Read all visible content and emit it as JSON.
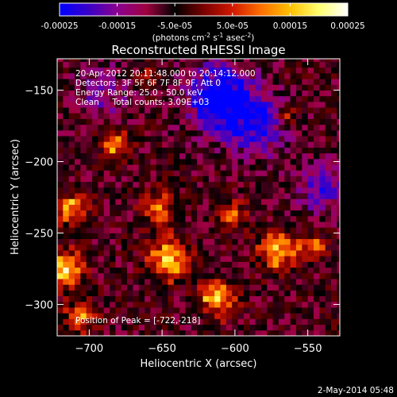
{
  "chart_data": {
    "type": "heatmap",
    "title": "Reconstructed RHESSI Image",
    "xlabel": "Heliocentric X (arcsec)",
    "ylabel": "Heliocentric Y (arcsec)",
    "xlim": [
      -722,
      -528
    ],
    "ylim": [
      -322,
      -128
    ],
    "xticks": [
      -700,
      -650,
      -600,
      -550
    ],
    "yticks": [
      -150,
      -200,
      -250,
      -300
    ],
    "colorbar": {
      "range": [
        -0.00025,
        0.00025
      ],
      "ticks": [
        "-0.00025",
        "-0.00015",
        "-5.0e-05",
        "5.0e-05",
        "0.00015",
        "0.00025"
      ],
      "tick_values": [
        -0.00025,
        -0.00015,
        -5e-05,
        5e-05,
        0.00015,
        0.00025
      ],
      "label_parts": [
        "(photons cm",
        "-2",
        " s",
        "-1",
        " asec",
        "-2",
        ")"
      ],
      "colors": [
        "#0000ff",
        "#3a00c8",
        "#8a0090",
        "#a00040",
        "#000000",
        "#7a0000",
        "#d21800",
        "#ff7000",
        "#ffc000",
        "#ffff70",
        "#ffffff"
      ]
    },
    "annotations": [
      "20-Apr-2012 20:11:48.000 to 20:14:12.000",
      "Detectors: 3F 5F 6F 7F 8F 9F, Att 0",
      "Energy Range: 25.0 - 50.0 keV",
      "Clean     Total counts: 3.09E+03"
    ],
    "peak_label": "Position of Peak = ",
    "peak_value": "[-722,-218]",
    "peak_position": [
      -722,
      -218
    ],
    "grid": false,
    "sources": [
      {
        "x": -682,
        "y": -188,
        "amp": 0.00017,
        "sigma": 7
      },
      {
        "x": -713,
        "y": -233,
        "amp": 0.00019,
        "sigma": 8
      },
      {
        "x": -716,
        "y": -275,
        "amp": 0.00021,
        "sigma": 9
      },
      {
        "x": -705,
        "y": -308,
        "amp": 0.00016,
        "sigma": 8
      },
      {
        "x": -652,
        "y": -233,
        "amp": 0.00018,
        "sigma": 8
      },
      {
        "x": -645,
        "y": -268,
        "amp": 0.00022,
        "sigma": 10
      },
      {
        "x": -612,
        "y": -296,
        "amp": 0.00021,
        "sigma": 9
      },
      {
        "x": -602,
        "y": -237,
        "amp": 0.00015,
        "sigma": 7
      },
      {
        "x": -570,
        "y": -263,
        "amp": 0.00022,
        "sigma": 9
      },
      {
        "x": -547,
        "y": -260,
        "amp": 0.00016,
        "sigma": 6
      },
      {
        "x": -565,
        "y": -168,
        "amp": 0.00013,
        "sigma": 5
      },
      {
        "x": -660,
        "y": -142,
        "amp": 0.00011,
        "sigma": 5
      }
    ],
    "negative_regions": [
      {
        "x": -610,
        "y": -155,
        "amp": -0.00024,
        "sigma": 16
      },
      {
        "x": -585,
        "y": -175,
        "amp": -0.00016,
        "sigma": 14
      },
      {
        "x": -540,
        "y": -218,
        "amp": -0.00014,
        "sigma": 12
      },
      {
        "x": -690,
        "y": -150,
        "amp": -0.0001,
        "sigma": 12
      }
    ]
  },
  "footer": {
    "timestamp": "2-May-2014 05:48"
  }
}
